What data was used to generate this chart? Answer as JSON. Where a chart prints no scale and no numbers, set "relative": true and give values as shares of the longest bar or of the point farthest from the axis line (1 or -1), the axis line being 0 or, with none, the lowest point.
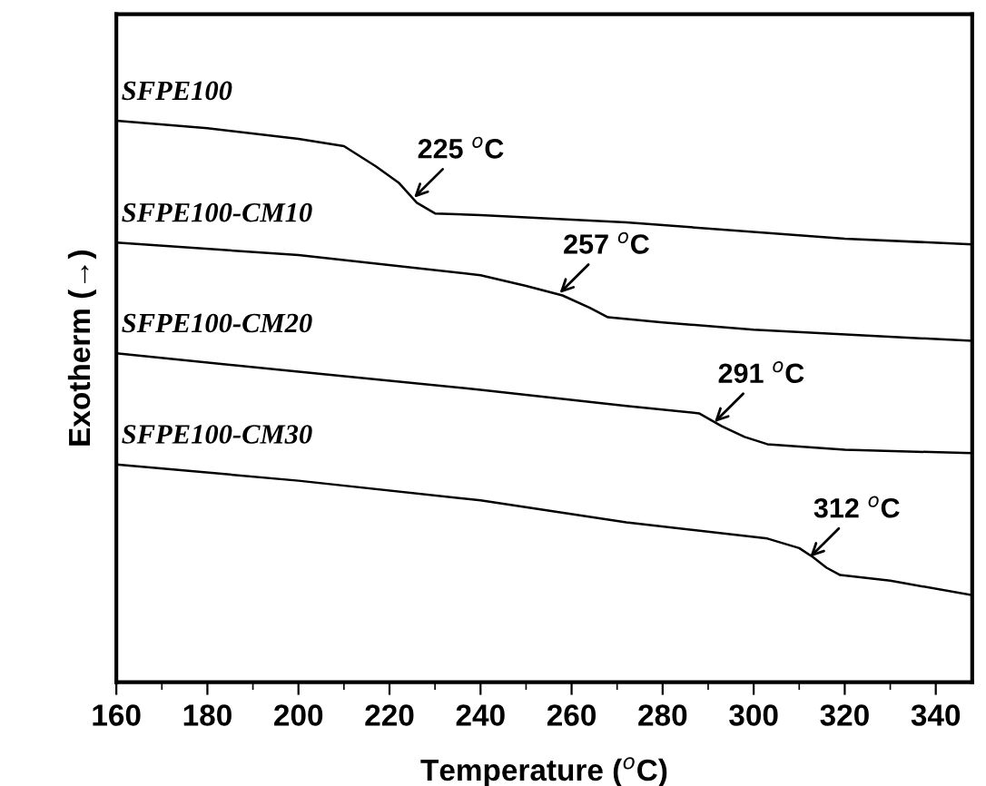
{
  "chart_data": {
    "type": "line",
    "relative": true,
    "xlabel": "Temperature ($^{o}$C)",
    "ylabel": "Exotherm (→)",
    "xlim": [
      160,
      348
    ],
    "xticks": [
      160,
      180,
      200,
      220,
      240,
      260,
      280,
      300,
      320,
      340
    ],
    "tick_labels": "x",
    "grid": false,
    "legend": false,
    "marker": "none",
    "line_style": "solid",
    "series": [
      {
        "name": "SFPE100",
        "color": "#000000",
        "x": [
          160,
          180,
          200,
          210,
          217,
          222,
          226,
          230,
          240,
          272,
          320,
          348
        ],
        "values": [
          1.0,
          0.987,
          0.968,
          0.955,
          0.919,
          0.89,
          0.854,
          0.835,
          0.832,
          0.819,
          0.79,
          0.78
        ]
      },
      {
        "name": "SFPE100-CM10",
        "color": "#000000",
        "x": [
          160,
          200,
          240,
          250,
          258,
          264,
          268,
          280,
          300,
          348
        ],
        "values": [
          0.783,
          0.761,
          0.725,
          0.706,
          0.689,
          0.667,
          0.65,
          0.641,
          0.628,
          0.608
        ]
      },
      {
        "name": "SFPE100-CM20",
        "color": "#000000",
        "x": [
          160,
          200,
          240,
          272,
          288,
          293,
          298,
          303,
          320,
          348
        ],
        "values": [
          0.586,
          0.553,
          0.521,
          0.492,
          0.479,
          0.456,
          0.437,
          0.424,
          0.414,
          0.408
        ]
      },
      {
        "name": "SFPE100-CM30",
        "color": "#000000",
        "x": [
          160,
          200,
          240,
          272,
          303,
          310,
          313,
          316,
          319,
          330,
          348
        ],
        "values": [
          0.388,
          0.359,
          0.324,
          0.285,
          0.256,
          0.239,
          0.223,
          0.204,
          0.191,
          0.181,
          0.155
        ]
      }
    ],
    "annotations": [
      {
        "text": "225 $^{o}$C",
        "x": 225,
        "y": 0.86
      },
      {
        "text": "257 $^{o}$C",
        "x": 257,
        "y": 0.69
      },
      {
        "text": "291 $^{o}$C",
        "x": 291,
        "y": 0.46
      },
      {
        "text": "312 $^{o}$C",
        "x": 312,
        "y": 0.22
      }
    ]
  }
}
